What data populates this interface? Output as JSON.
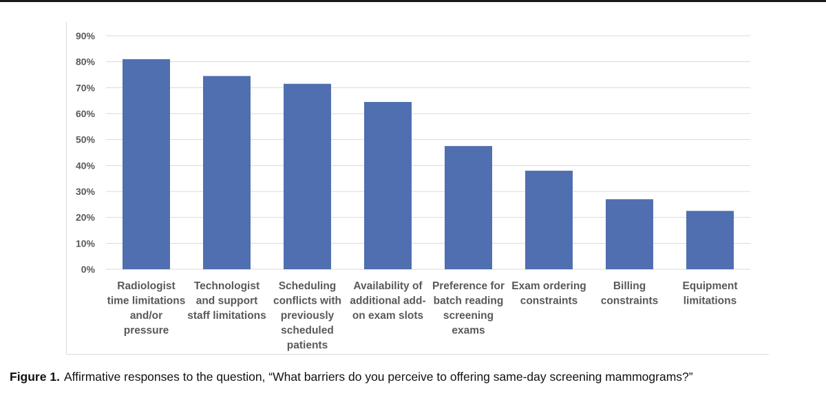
{
  "chart_data": {
    "type": "bar",
    "categories": [
      [
        "Radiologist",
        "time limitations",
        "and/or",
        "pressure"
      ],
      [
        "Technologist",
        "and support",
        "staff limitations"
      ],
      [
        "Scheduling",
        "conflicts with",
        "previously",
        "scheduled",
        "patients"
      ],
      [
        "Availability of",
        "additional add-",
        "on exam slots"
      ],
      [
        "Preference for",
        "batch reading",
        "screening",
        "exams"
      ],
      [
        "Exam ordering",
        "constraints"
      ],
      [
        "Billing",
        "constraints"
      ],
      [
        "Equipment",
        "limitations"
      ]
    ],
    "values": [
      81,
      74.5,
      71.5,
      64.5,
      47.5,
      38,
      27,
      22.5
    ],
    "ylim": [
      0,
      90
    ],
    "yticks": [
      "0%",
      "10%",
      "20%",
      "30%",
      "40%",
      "50%",
      "60%",
      "70%",
      "80%",
      "90%"
    ],
    "grid": true,
    "bar_color": "#4f6fb0",
    "grid_color": "#d9d9d9",
    "tick_color": "#595959"
  },
  "caption": {
    "label": "Figure 1.",
    "text": "Affirmative responses to the question, “What barriers do you perceive to offering same-day screening mammograms?”"
  }
}
